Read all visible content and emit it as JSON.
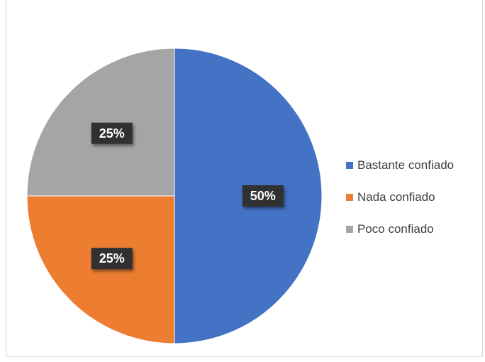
{
  "chart_data": {
    "type": "pie",
    "categories": [
      "Bastante confiado",
      "Nada confiado",
      "Poco confiado"
    ],
    "values": [
      50,
      25,
      25
    ],
    "data_labels": [
      "50%",
      "25%",
      "25%"
    ],
    "colors": [
      "#4472c4",
      "#ed7d31",
      "#a5a5a5"
    ],
    "legend_position": "right",
    "title": ""
  }
}
